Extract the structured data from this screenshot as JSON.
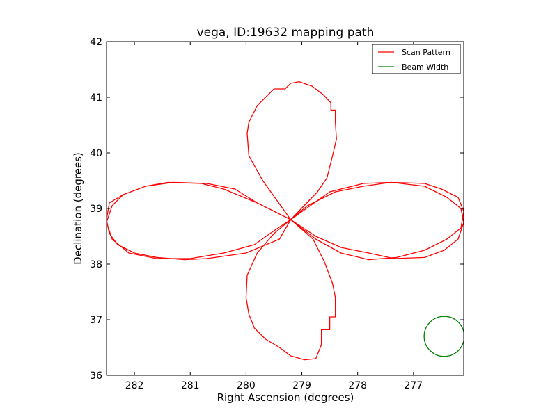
{
  "chart_data": {
    "type": "line",
    "title": "vega, ID:19632 mapping path",
    "xlabel": "Right Ascension (degrees)",
    "ylabel": "Declination (degrees)",
    "xlim": [
      282.5,
      276.1
    ],
    "ylim": [
      36,
      42
    ],
    "x_inverted": true,
    "xticks": [
      282,
      281,
      280,
      279,
      278,
      277
    ],
    "yticks": [
      36,
      37,
      38,
      39,
      40,
      41,
      42
    ],
    "grid": false,
    "legend_position": "top-right",
    "series": [
      {
        "name": "Scan Pattern",
        "color": "#ff0000",
        "x": [
          279.2,
          279.7,
          279.95,
          279.98,
          279.95,
          279.8,
          279.6,
          279.5,
          279.3,
          279.2,
          279.05,
          278.82,
          278.62,
          278.48,
          278.48,
          278.4,
          278.4,
          278.38,
          278.45,
          278.55,
          278.72,
          279.2,
          279.8,
          280.4,
          280.8,
          281.4,
          281.8,
          282.2,
          282.45,
          282.5,
          282.45,
          282.3,
          282.0,
          281.6,
          281.1,
          280.7,
          280.0,
          279.4,
          279.2,
          278.9,
          278.4,
          277.9,
          277.4,
          276.8,
          276.5,
          276.2,
          276.1,
          276.15,
          276.4,
          276.8,
          277.3,
          277.8,
          278.3,
          278.75,
          279.2,
          279.5,
          279.8,
          279.98,
          280.0,
          279.95,
          279.85,
          279.65,
          279.4,
          279.2,
          278.95,
          278.75,
          278.65,
          278.65,
          278.5,
          278.5,
          278.4,
          278.4,
          278.45,
          278.6,
          278.8,
          279.2,
          279.5,
          279.85,
          280.4,
          281.0,
          281.6,
          282.1,
          282.4,
          282.5,
          282.4,
          282.2,
          281.8,
          281.3,
          280.7,
          280.2,
          279.8,
          279.2,
          278.75,
          278.3,
          277.8,
          277.35,
          276.8,
          276.45,
          276.2,
          276.1,
          276.15,
          276.4,
          276.8,
          277.4,
          277.9,
          278.5,
          279.2
        ],
        "y": [
          38.8,
          39.5,
          39.95,
          40.35,
          40.55,
          40.85,
          41.05,
          41.15,
          41.15,
          41.25,
          41.28,
          41.2,
          41.05,
          40.9,
          40.77,
          40.77,
          40.55,
          40.25,
          39.95,
          39.55,
          39.3,
          38.8,
          39.1,
          39.35,
          39.45,
          39.47,
          39.4,
          39.25,
          39.1,
          38.8,
          38.55,
          38.35,
          38.2,
          38.12,
          38.08,
          38.1,
          38.2,
          38.45,
          38.8,
          39.05,
          39.3,
          39.4,
          39.47,
          39.45,
          39.35,
          39.2,
          38.95,
          38.65,
          38.45,
          38.25,
          38.12,
          38.08,
          38.2,
          38.45,
          38.8,
          38.55,
          38.2,
          37.8,
          37.4,
          37.1,
          36.85,
          36.65,
          36.5,
          36.35,
          36.28,
          36.3,
          36.55,
          36.82,
          36.82,
          37.05,
          37.05,
          37.4,
          37.65,
          38.05,
          38.45,
          38.8,
          38.6,
          38.35,
          38.2,
          38.1,
          38.1,
          38.2,
          38.45,
          38.75,
          39.05,
          39.25,
          39.4,
          39.47,
          39.45,
          39.35,
          39.1,
          38.8,
          38.5,
          38.3,
          38.2,
          38.1,
          38.12,
          38.25,
          38.45,
          38.75,
          39.0,
          39.2,
          39.4,
          39.47,
          39.45,
          39.3,
          38.8
        ]
      },
      {
        "name": "Beam Width",
        "color": "#008000",
        "shape": "circle",
        "center": [
          276.45,
          36.7
        ],
        "radius_y": 0.36
      }
    ]
  }
}
